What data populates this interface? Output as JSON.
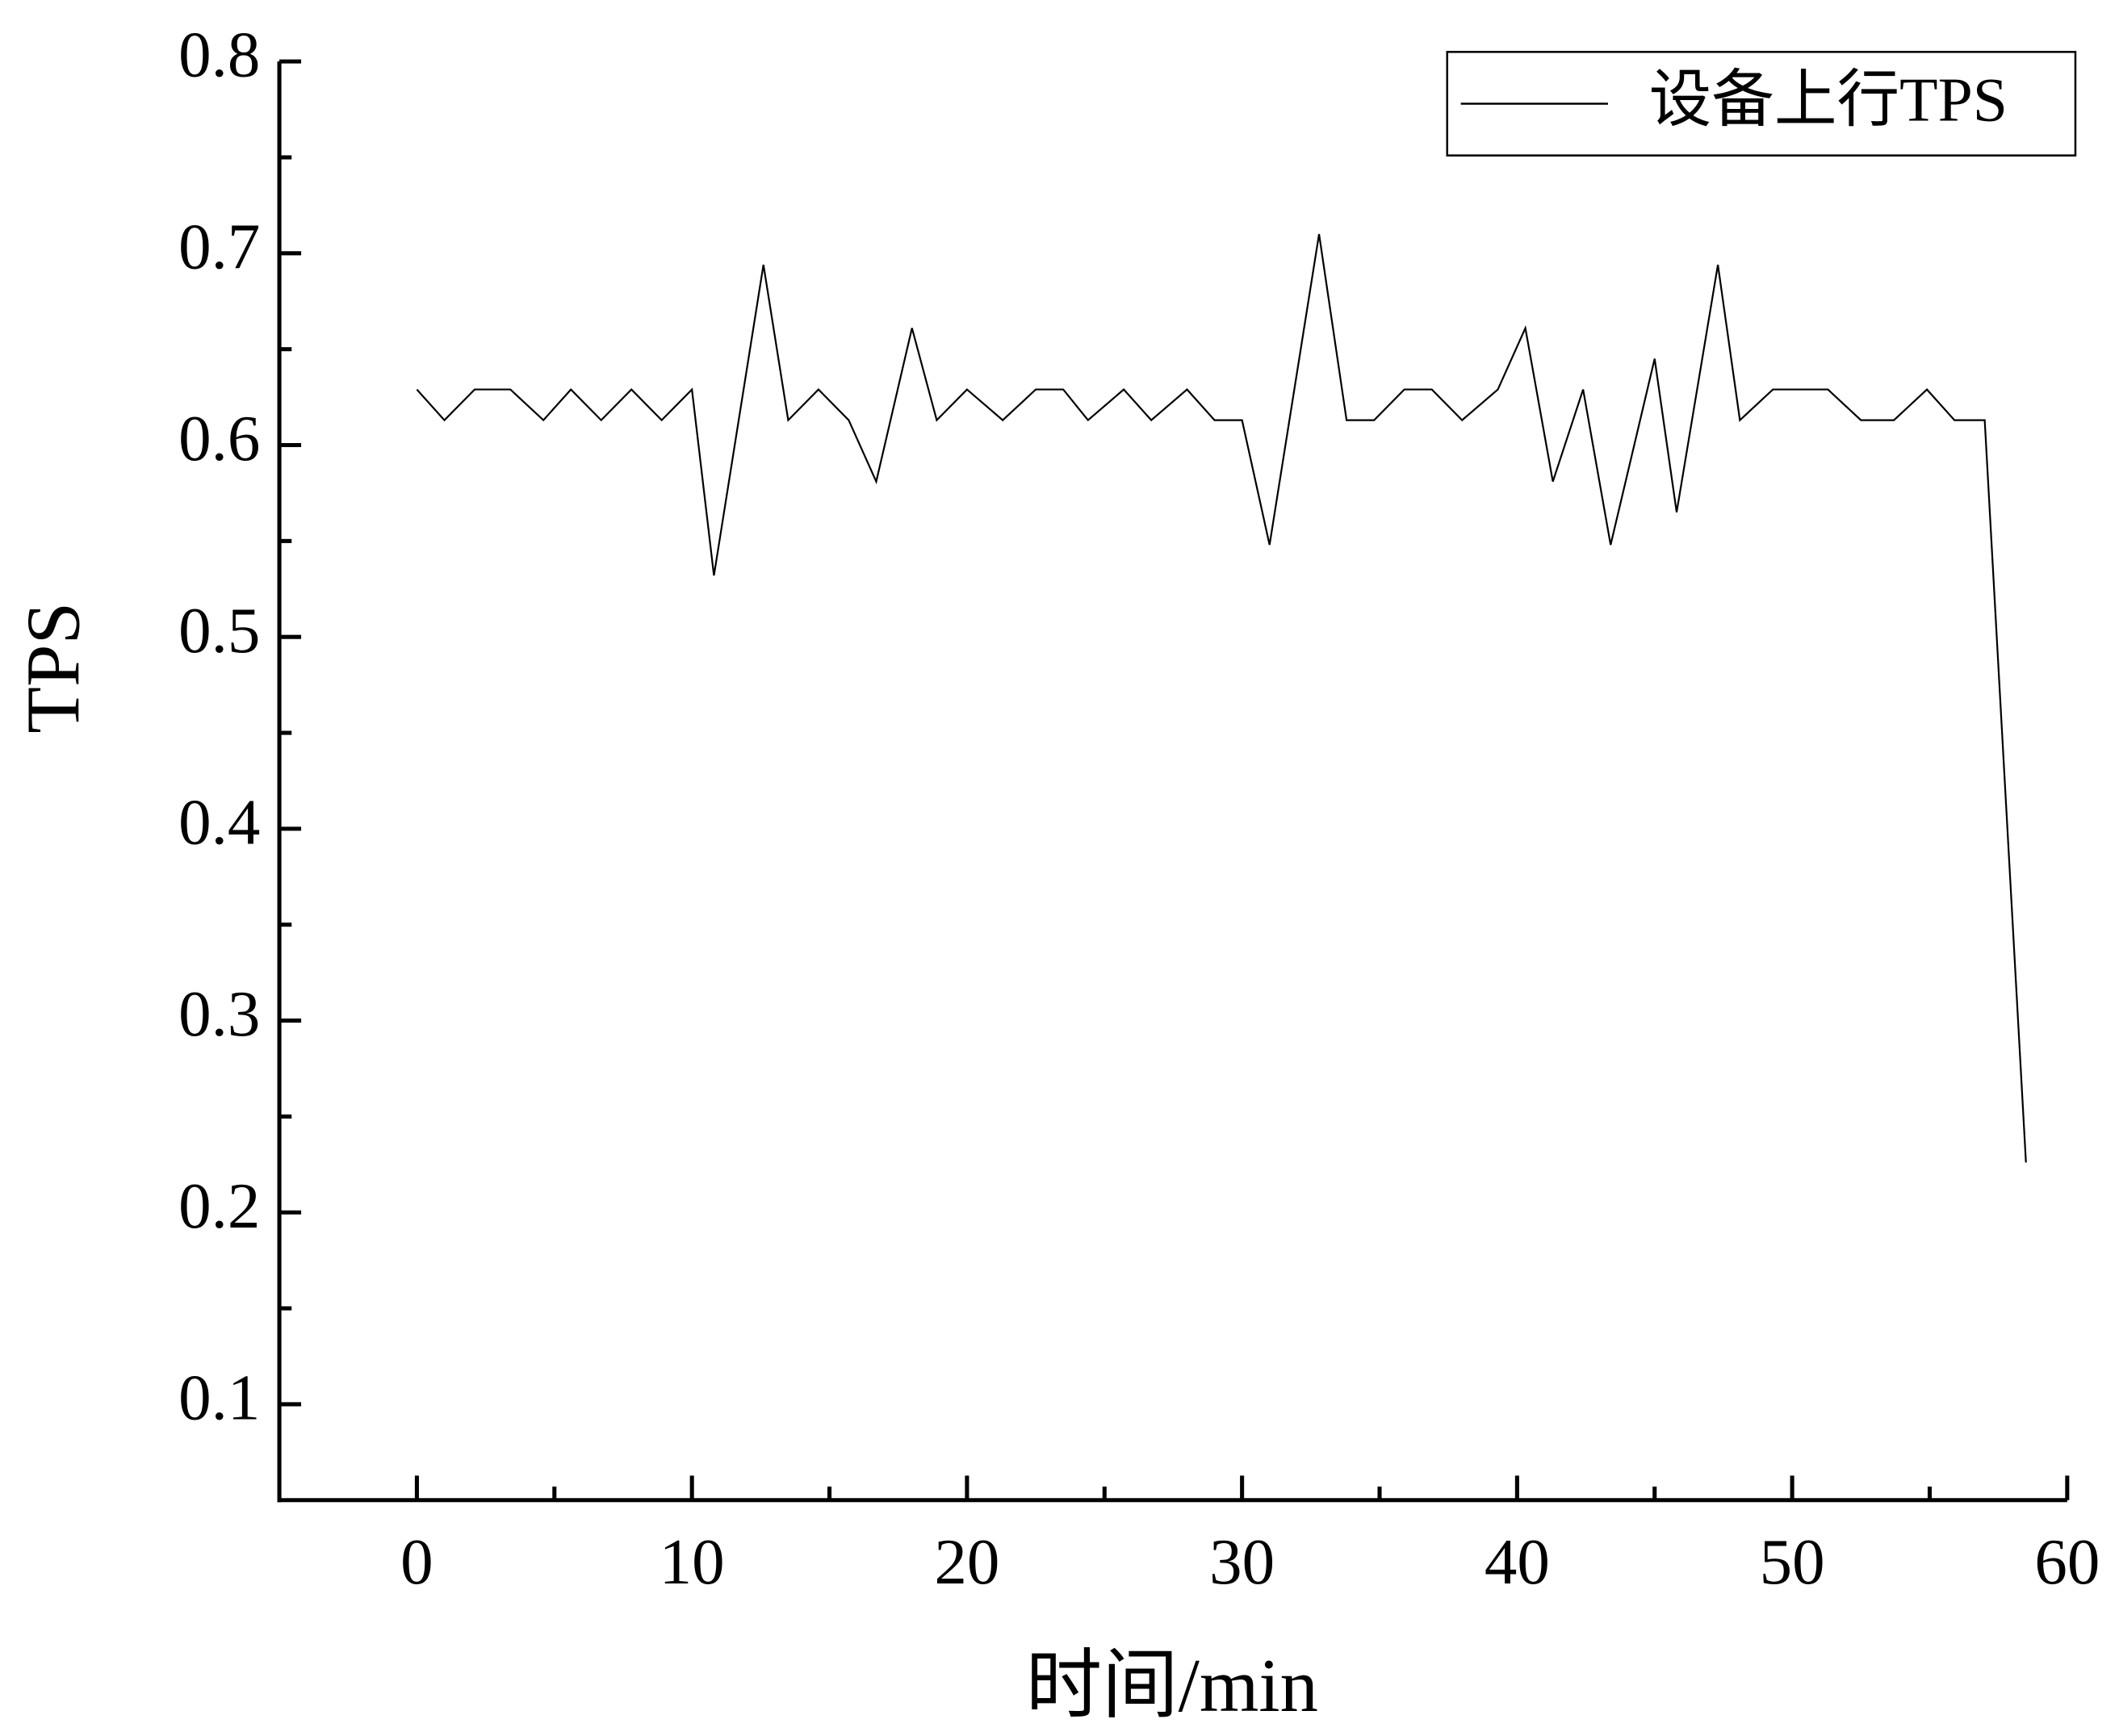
{
  "chart_data": {
    "type": "line",
    "x_label": "时间/min",
    "y_label": "TPS",
    "xlim": [
      -5,
      60
    ],
    "ylim": [
      0.05,
      0.8
    ],
    "xticks": [
      0,
      10,
      20,
      30,
      40,
      50,
      60
    ],
    "yticks": [
      0.1,
      0.2,
      0.3,
      0.4,
      0.5,
      0.6,
      0.7,
      0.8
    ],
    "grid": false,
    "legend": "top-right",
    "x": [
      0.0,
      1.0,
      2.1,
      3.4,
      4.6,
      5.6,
      6.7,
      7.8,
      8.9,
      10.0,
      10.8,
      12.6,
      13.5,
      14.6,
      15.7,
      16.7,
      18.0,
      18.9,
      20.0,
      21.3,
      22.5,
      23.5,
      24.4,
      25.7,
      26.7,
      28.0,
      29.0,
      30.0,
      31.0,
      32.8,
      33.8,
      34.8,
      35.9,
      36.9,
      38.0,
      39.3,
      40.3,
      41.3,
      42.4,
      43.4,
      45.0,
      45.8,
      47.3,
      48.1,
      49.3,
      50.2,
      51.3,
      52.5,
      53.7,
      54.9,
      55.9,
      57.0,
      58.5
    ],
    "series": [
      {
        "name": "设备上行TPS",
        "color": "#000000",
        "values": [
          0.629,
          0.613,
          0.629,
          0.629,
          0.613,
          0.629,
          0.613,
          0.629,
          0.613,
          0.629,
          0.532,
          0.694,
          0.613,
          0.629,
          0.613,
          0.581,
          0.661,
          0.613,
          0.629,
          0.613,
          0.629,
          0.629,
          0.613,
          0.629,
          0.613,
          0.629,
          0.613,
          0.613,
          0.548,
          0.71,
          0.613,
          0.613,
          0.629,
          0.629,
          0.613,
          0.629,
          0.661,
          0.581,
          0.629,
          0.548,
          0.645,
          0.565,
          0.694,
          0.613,
          0.629,
          0.629,
          0.629,
          0.613,
          0.613,
          0.629,
          0.613,
          0.613,
          0.226
        ]
      }
    ]
  }
}
